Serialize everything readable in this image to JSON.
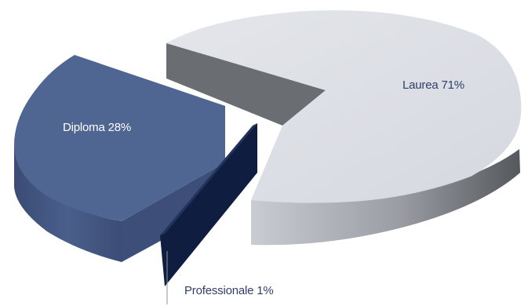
{
  "chart_data": {
    "type": "pie",
    "title": "",
    "style": "3d-exploded",
    "legend": "none",
    "slices": [
      {
        "label": "Laurea",
        "value": 71,
        "display": "71%",
        "color": "#d9dce3",
        "label_color": "#2f3f6a"
      },
      {
        "label": "Diploma",
        "value": 28,
        "display": "28%",
        "color": "#4f6592",
        "label_color": "#ffffff"
      },
      {
        "label": "Professionale",
        "value": 1,
        "display": "1%",
        "color": "#0f1e40",
        "label_color": "#2f3f6a"
      }
    ]
  }
}
